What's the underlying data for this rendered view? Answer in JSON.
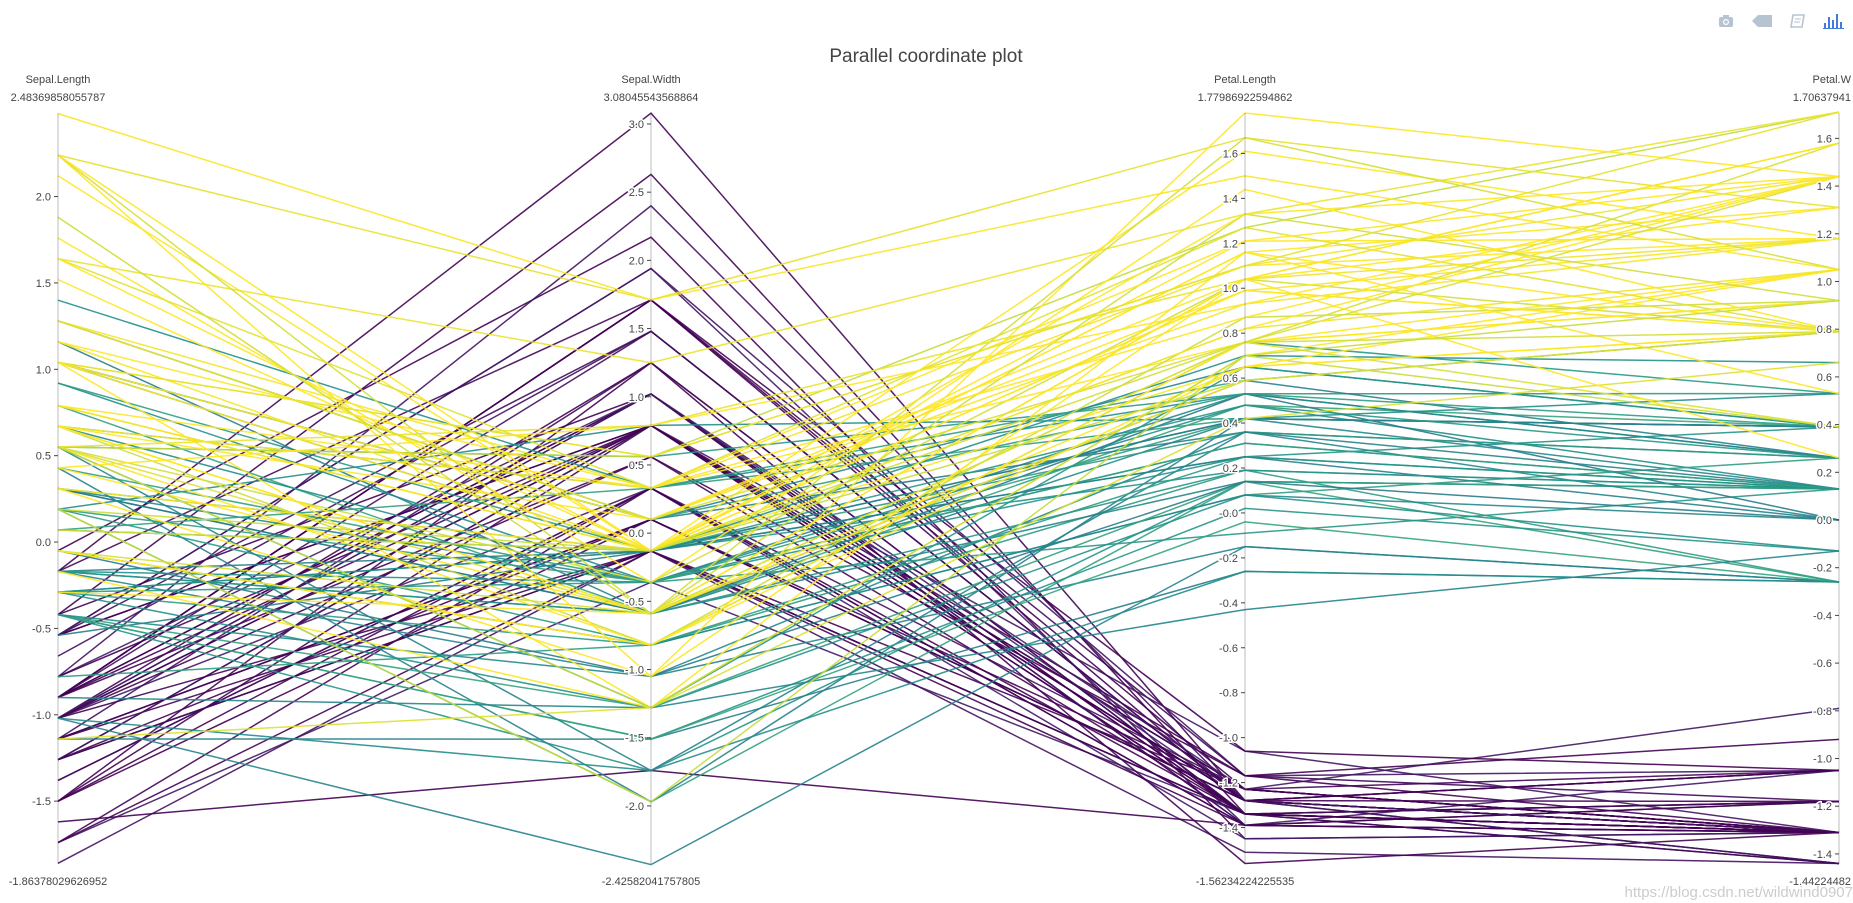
{
  "toolbar": {
    "icons": [
      "camera-icon",
      "zoom-icon",
      "book-icon",
      "plotly-logo-icon"
    ]
  },
  "watermark": "https://blog.csdn.net/wildwind0907",
  "chart_data": {
    "type": "parcoords",
    "title": "Parallel coordinate plot",
    "colorscale": [
      "#440154",
      "#3b528b",
      "#21918c",
      "#5ec962",
      "#fde725"
    ],
    "dimensions": [
      {
        "label": "Sepal.Length",
        "max_label": "2.48369858055787",
        "min_label": "-1.86378029626952",
        "range": [
          -1.86378029626952,
          2.48369858055787
        ],
        "ticks": [
          "2.0",
          "1.5",
          "1.0",
          "0.5",
          "0.0",
          "-0.5",
          "-1.0",
          "-1.5"
        ]
      },
      {
        "label": "Sepal.Width",
        "max_label": "3.08045543568864",
        "min_label": "-2.42582041757805",
        "range": [
          -2.42582041757805,
          3.08045543568864
        ],
        "ticks": [
          "3.0",
          "2.5",
          "2.0",
          "1.5",
          "1.0",
          "0.5",
          "0.0",
          "-0.5",
          "-1.0",
          "-1.5",
          "-2.0"
        ]
      },
      {
        "label": "Petal.Length",
        "max_label": "1.77986922594862",
        "min_label": "-1.56234224225535",
        "range": [
          -1.56234224225535,
          1.77986922594862
        ],
        "ticks": [
          "1.6",
          "1.4",
          "1.2",
          "1.0",
          "0.8",
          "0.6",
          "0.4",
          "0.2",
          "-0.0",
          "-0.2",
          "-0.4",
          "-0.6",
          "-0.8",
          "-1.0",
          "-1.2",
          "-1.4"
        ]
      },
      {
        "label": "Petal.W",
        "max_label": "1.70637941",
        "min_label": "-1.44224482",
        "range": [
          -1.44224482,
          1.70637941
        ],
        "ticks": [
          "1.6",
          "1.4",
          "1.2",
          "1.0",
          "0.8",
          "0.6",
          "0.4",
          "0.2",
          "0.0",
          "-0.2",
          "-0.4",
          "-0.6",
          "-0.8",
          "-1.0",
          "-1.2",
          "-1.4"
        ]
      }
    ],
    "lines": [
      [
        -0.9,
        1.02,
        -1.34,
        -1.31,
        0.0
      ],
      [
        -1.14,
        -0.13,
        -1.34,
        -1.31,
        0.0
      ],
      [
        -1.38,
        0.33,
        -1.39,
        -1.31,
        0.0
      ],
      [
        -1.5,
        0.1,
        -1.28,
        -1.31,
        0.0
      ],
      [
        -1.02,
        1.25,
        -1.34,
        -1.31,
        0.0
      ],
      [
        -0.54,
        1.94,
        -1.17,
        -1.05,
        0.0
      ],
      [
        -1.5,
        0.79,
        -1.34,
        -1.18,
        0.0
      ],
      [
        -1.02,
        0.79,
        -1.28,
        -1.31,
        0.0
      ],
      [
        -1.74,
        -0.36,
        -1.34,
        -1.31,
        0.0
      ],
      [
        -1.14,
        0.1,
        -1.28,
        -1.44,
        0.0
      ],
      [
        -0.54,
        1.48,
        -1.28,
        -1.31,
        0.0
      ],
      [
        -1.26,
        0.79,
        -1.23,
        -1.31,
        0.0
      ],
      [
        -1.26,
        -0.13,
        -1.34,
        -1.44,
        0.0
      ],
      [
        -1.86,
        -0.13,
        -1.51,
        -1.44,
        0.0
      ],
      [
        -0.05,
        2.17,
        -1.45,
        -1.31,
        0.0
      ],
      [
        -0.17,
        3.08,
        -1.28,
        -1.05,
        0.0
      ],
      [
        -0.54,
        1.94,
        -1.39,
        -1.05,
        0.0
      ],
      [
        -0.9,
        1.02,
        -1.34,
        -1.18,
        0.0
      ],
      [
        -0.17,
        1.71,
        -1.17,
        -1.18,
        0.0
      ],
      [
        -0.9,
        1.71,
        -1.28,
        -1.18,
        0.0
      ],
      [
        -0.54,
        0.79,
        -1.17,
        -1.31,
        0.0
      ],
      [
        -0.9,
        1.48,
        -1.28,
        -1.05,
        0.0
      ],
      [
        -1.5,
        1.25,
        -1.56,
        -1.31,
        0.0
      ],
      [
        -0.9,
        0.56,
        -1.17,
        -0.92,
        0.0
      ],
      [
        -1.26,
        0.79,
        -1.06,
        -1.31,
        0.0
      ],
      [
        -1.02,
        -0.13,
        -1.23,
        -1.31,
        0.0
      ],
      [
        -1.02,
        0.79,
        -1.23,
        -1.05,
        0.0
      ],
      [
        -0.78,
        1.02,
        -1.28,
        -1.31,
        0.0
      ],
      [
        -0.78,
        0.79,
        -1.34,
        -1.31,
        0.0
      ],
      [
        -1.38,
        0.33,
        -1.23,
        -1.31,
        0.0
      ],
      [
        -1.26,
        0.1,
        -1.23,
        -1.31,
        0.0
      ],
      [
        -0.54,
        0.79,
        -1.28,
        -1.05,
        0.0
      ],
      [
        -0.78,
        2.4,
        -1.28,
        -1.44,
        0.0
      ],
      [
        -0.42,
        2.63,
        -1.34,
        -1.31,
        0.0
      ],
      [
        -1.14,
        0.1,
        -1.28,
        -1.31,
        0.0
      ],
      [
        -1.02,
        0.33,
        -1.45,
        -1.31,
        0.0
      ],
      [
        -0.42,
        1.02,
        -1.39,
        -1.31,
        0.0
      ],
      [
        -1.14,
        1.25,
        -1.34,
        -1.44,
        0.0
      ],
      [
        -1.74,
        -0.13,
        -1.39,
        -1.31,
        0.0
      ],
      [
        -0.9,
        0.79,
        -1.28,
        -1.31,
        0.0
      ],
      [
        -1.02,
        1.02,
        -1.39,
        -1.18,
        0.0
      ],
      [
        -1.62,
        -1.74,
        -1.39,
        -1.18,
        0.0
      ],
      [
        -1.74,
        0.33,
        -1.39,
        -1.31,
        0.0
      ],
      [
        -1.02,
        1.02,
        -1.23,
        -0.79,
        0.0
      ],
      [
        -0.9,
        1.71,
        -1.06,
        -1.05,
        0.0
      ],
      [
        -1.26,
        -0.13,
        -1.34,
        -1.18,
        0.0
      ],
      [
        -0.9,
        1.71,
        -1.23,
        -1.31,
        0.0
      ],
      [
        -1.5,
        0.33,
        -1.34,
        -1.31,
        0.0
      ],
      [
        -0.66,
        1.48,
        -1.28,
        -1.31,
        0.0
      ],
      [
        -1.02,
        0.56,
        -1.34,
        -1.31,
        0.0
      ],
      [
        1.4,
        0.33,
        0.53,
        0.26,
        0.5
      ],
      [
        0.67,
        0.33,
        0.42,
        0.39,
        0.5
      ],
      [
        1.28,
        0.1,
        0.65,
        0.39,
        0.5
      ],
      [
        -0.42,
        -1.74,
        0.14,
        0.13,
        0.5
      ],
      [
        0.79,
        -0.59,
        0.48,
        0.39,
        0.5
      ],
      [
        -0.17,
        -0.59,
        0.42,
        0.13,
        0.5
      ],
      [
        0.55,
        0.56,
        0.53,
        0.53,
        0.5
      ],
      [
        -1.14,
        -1.51,
        -0.26,
        -0.26,
        0.5
      ],
      [
        0.92,
        -0.36,
        0.48,
        0.13,
        0.5
      ],
      [
        -0.78,
        -0.82,
        0.08,
        0.26,
        0.5
      ],
      [
        -1.02,
        -2.43,
        -0.15,
        -0.26,
        0.5
      ],
      [
        0.07,
        -0.13,
        0.25,
        0.39,
        0.5
      ],
      [
        0.19,
        -1.97,
        0.14,
        -0.26,
        0.5
      ],
      [
        0.31,
        -0.36,
        0.53,
        0.26,
        0.5
      ],
      [
        -0.29,
        -0.36,
        -0.09,
        0.13,
        0.5
      ],
      [
        1.04,
        0.1,
        0.36,
        0.26,
        0.5
      ],
      [
        -0.29,
        -0.13,
        0.42,
        0.39,
        0.5
      ],
      [
        -0.05,
        -0.82,
        0.19,
        -0.26,
        0.5
      ],
      [
        0.43,
        -1.97,
        0.42,
        0.39,
        0.5
      ],
      [
        -0.29,
        -1.28,
        0.08,
        -0.13,
        0.5
      ],
      [
        0.07,
        0.33,
        0.59,
        0.79,
        0.5
      ],
      [
        0.31,
        -0.59,
        0.14,
        0.13,
        0.5
      ],
      [
        0.55,
        -1.28,
        0.65,
        0.39,
        0.5
      ],
      [
        0.31,
        -0.59,
        0.53,
        0.0,
        0.5
      ],
      [
        0.67,
        -0.36,
        0.31,
        0.13,
        0.5
      ],
      [
        0.92,
        -0.13,
        0.36,
        0.26,
        0.5
      ],
      [
        1.16,
        -0.59,
        0.59,
        0.26,
        0.5
      ],
      [
        1.04,
        -0.13,
        0.7,
        0.66,
        0.5
      ],
      [
        0.19,
        -0.36,
        0.42,
        0.39,
        0.5
      ],
      [
        -0.17,
        -1.05,
        -0.15,
        -0.26,
        0.5
      ],
      [
        -0.42,
        -1.51,
        0.02,
        -0.13,
        0.5
      ],
      [
        -0.42,
        -1.51,
        -0.04,
        -0.26,
        0.5
      ],
      [
        -0.05,
        -0.82,
        0.08,
        0.0,
        0.5
      ],
      [
        0.19,
        -0.82,
        0.76,
        0.53,
        0.5
      ],
      [
        -0.54,
        -0.13,
        0.42,
        0.39,
        0.5
      ],
      [
        0.19,
        0.79,
        0.42,
        0.53,
        0.5
      ],
      [
        1.04,
        0.1,
        0.53,
        0.39,
        0.5
      ],
      [
        0.55,
        -1.74,
        0.36,
        0.13,
        0.5
      ],
      [
        -0.29,
        -0.13,
        0.19,
        0.13,
        0.5
      ],
      [
        -0.42,
        -1.28,
        0.14,
        0.13,
        0.5
      ],
      [
        -0.42,
        -1.05,
        0.36,
        0.0,
        0.5
      ],
      [
        0.31,
        -0.13,
        0.48,
        0.26,
        0.5
      ],
      [
        -0.05,
        -1.05,
        0.14,
        0.0,
        0.5
      ],
      [
        -1.02,
        -1.74,
        -0.26,
        -0.26,
        0.5
      ],
      [
        -0.29,
        -0.82,
        0.25,
        0.13,
        0.5
      ],
      [
        -0.17,
        -0.13,
        0.25,
        0.0,
        0.5
      ],
      [
        -0.17,
        -0.36,
        0.25,
        0.13,
        0.5
      ],
      [
        0.43,
        -0.36,
        0.31,
        0.13,
        0.5
      ],
      [
        -0.9,
        -1.28,
        -0.43,
        -0.13,
        0.5
      ],
      [
        -0.17,
        -0.59,
        0.19,
        0.13,
        0.5
      ],
      [
        0.55,
        0.56,
        1.27,
        1.71,
        1.0
      ],
      [
        -0.05,
        -0.82,
        0.76,
        0.92,
        1.0
      ],
      [
        1.52,
        -0.13,
        1.21,
        1.18,
        1.0
      ],
      [
        0.55,
        -0.36,
        1.04,
        0.79,
        1.0
      ],
      [
        0.79,
        -0.13,
        1.16,
        1.31,
        1.0
      ],
      [
        2.12,
        -0.13,
        1.61,
        1.18,
        1.0
      ],
      [
        -1.14,
        -1.28,
        0.42,
        0.66,
        1.0
      ],
      [
        1.76,
        -0.36,
        1.44,
        0.79,
        1.0
      ],
      [
        1.04,
        -1.28,
        1.16,
        0.79,
        1.0
      ],
      [
        1.64,
        1.25,
        1.33,
        1.71,
        1.0
      ],
      [
        0.79,
        0.33,
        0.76,
        1.05,
        1.0
      ],
      [
        0.67,
        -0.82,
        0.87,
        0.92,
        1.0
      ],
      [
        1.16,
        -0.13,
        0.99,
        1.18,
        1.0
      ],
      [
        -0.17,
        -1.28,
        0.7,
        1.05,
        1.0
      ],
      [
        -0.05,
        -0.59,
        0.76,
        1.58,
        1.0
      ],
      [
        0.67,
        0.33,
        0.87,
        1.44,
        1.0
      ],
      [
        0.79,
        -0.13,
        0.99,
        0.79,
        1.0
      ],
      [
        2.24,
        1.71,
        1.67,
        1.31,
        1.0
      ],
      [
        2.24,
        -1.05,
        1.78,
        1.44,
        1.0
      ],
      [
        0.19,
        -1.97,
        0.7,
        0.39,
        1.0
      ],
      [
        1.28,
        0.33,
        1.1,
        1.44,
        1.0
      ],
      [
        -0.29,
        -0.59,
        0.65,
        1.05,
        1.0
      ],
      [
        2.24,
        -0.59,
        1.67,
        1.05,
        1.0
      ],
      [
        0.55,
        -0.82,
        0.65,
        0.79,
        1.0
      ],
      [
        1.04,
        0.56,
        1.1,
        1.18,
        1.0
      ],
      [
        1.64,
        0.33,
        1.27,
        0.79,
        1.0
      ],
      [
        0.43,
        -0.59,
        0.59,
        0.79,
        1.0
      ],
      [
        0.31,
        -0.13,
        0.65,
        0.79,
        1.0
      ],
      [
        0.67,
        -0.59,
        1.04,
        1.18,
        1.0
      ],
      [
        1.64,
        -0.13,
        1.16,
        0.53,
        1.0
      ],
      [
        1.88,
        -0.59,
        1.33,
        0.92,
        1.0
      ],
      [
        2.48,
        1.71,
        1.5,
        1.05,
        1.0
      ],
      [
        0.67,
        -0.59,
        1.04,
        1.31,
        1.0
      ],
      [
        0.55,
        -0.59,
        0.76,
        0.39,
        1.0
      ],
      [
        0.31,
        -1.05,
        1.04,
        0.26,
        1.0
      ],
      [
        2.24,
        -0.13,
        1.33,
        1.44,
        1.0
      ],
      [
        0.55,
        0.79,
        1.04,
        1.58,
        1.0
      ],
      [
        0.67,
        0.1,
        0.99,
        0.79,
        1.0
      ],
      [
        0.19,
        -0.13,
        0.59,
        0.79,
        1.0
      ],
      [
        1.28,
        0.1,
        0.93,
        1.18,
        1.0
      ],
      [
        1.04,
        0.1,
        1.04,
        1.58,
        1.0
      ],
      [
        1.28,
        0.1,
        0.76,
        1.44,
        1.0
      ],
      [
        -0.05,
        -0.82,
        0.76,
        0.92,
        1.0
      ],
      [
        1.16,
        0.33,
        1.21,
        1.44,
        1.0
      ],
      [
        1.04,
        0.56,
        1.1,
        1.71,
        1.0
      ],
      [
        1.04,
        -0.13,
        0.82,
        1.44,
        1.0
      ],
      [
        0.55,
        -1.28,
        0.7,
        0.92,
        1.0
      ],
      [
        0.79,
        -0.13,
        0.82,
        1.05,
        1.0
      ],
      [
        0.43,
        0.79,
        0.93,
        1.44,
        1.0
      ],
      [
        0.07,
        -0.13,
        0.76,
        0.79,
        1.0
      ]
    ]
  }
}
